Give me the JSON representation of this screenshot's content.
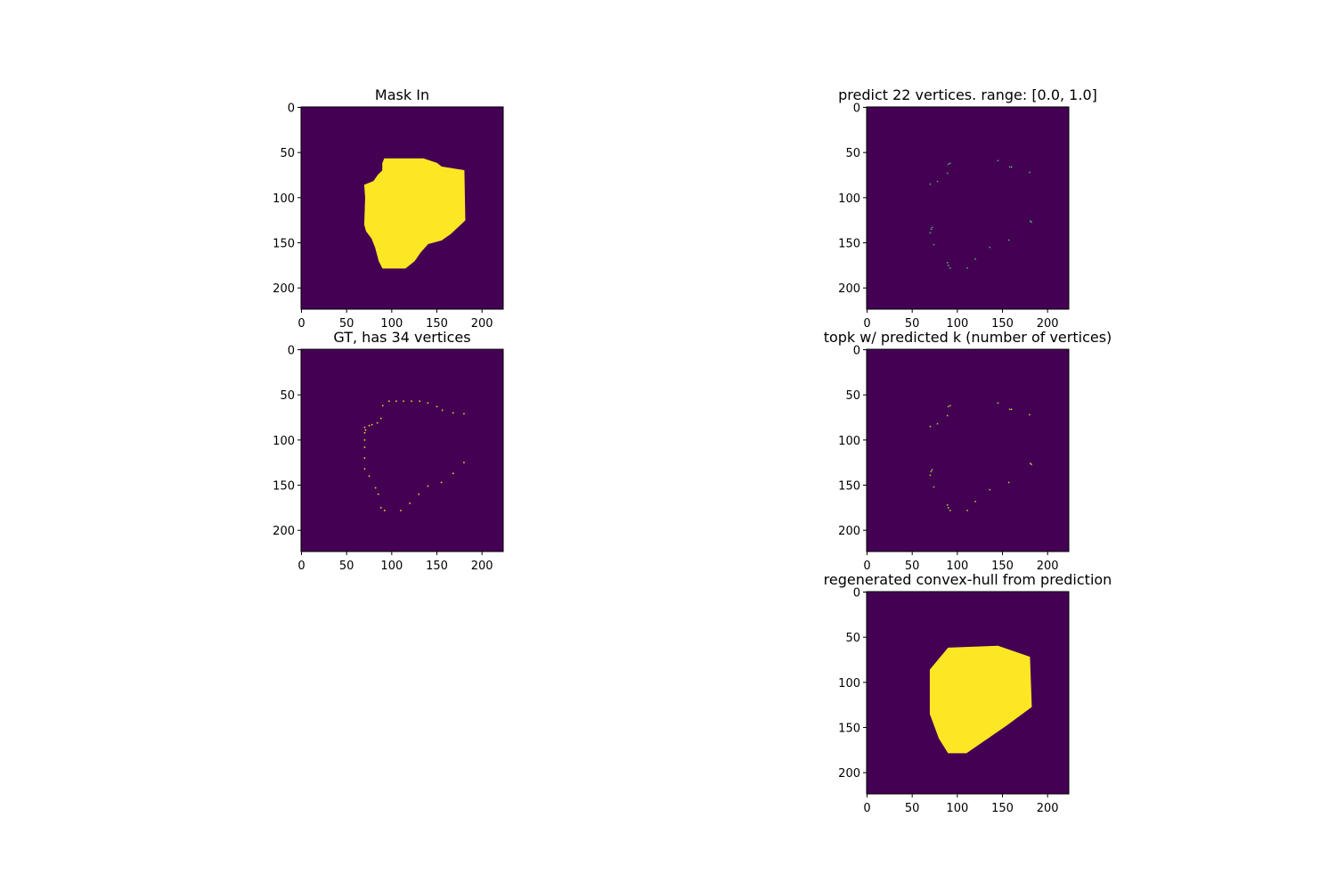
{
  "chart_data": [
    {
      "type": "image",
      "title": "Mask In",
      "xlim": [
        -0.5,
        223.5
      ],
      "ylim": [
        223.5,
        -0.5
      ],
      "xticks": [
        0,
        50,
        100,
        150,
        200
      ],
      "yticks": [
        0,
        50,
        100,
        150,
        200
      ],
      "background": "#440154",
      "polygon": {
        "color": "#fde725",
        "x": [
          90,
          92,
          135,
          150,
          155,
          180,
          181,
          165,
          155,
          140,
          132,
          125,
          115,
          90,
          86,
          82,
          78,
          72,
          70,
          71,
          70,
          80,
          85,
          90
        ],
        "y": [
          62,
          57,
          57,
          62,
          66,
          70,
          125,
          140,
          147,
          151,
          160,
          170,
          178,
          178,
          170,
          155,
          145,
          137,
          130,
          100,
          86,
          82,
          75,
          70
        ]
      }
    },
    {
      "type": "image",
      "title": "predict 22 vertices. range: [0.0, 1.0]",
      "xlim": [
        -0.5,
        223.5
      ],
      "ylim": [
        223.5,
        -0.5
      ],
      "xticks": [
        0,
        50,
        100,
        150,
        200
      ],
      "yticks": [
        0,
        50,
        100,
        150,
        200
      ],
      "background": "#440154",
      "points": {
        "color": "#4ac16d",
        "x": [
          92,
          90,
          89,
          78,
          70,
          145,
          158,
          160,
          180,
          182,
          181,
          157,
          136,
          120,
          111,
          92,
          90,
          89,
          74,
          72,
          71,
          70
        ],
        "y": [
          62,
          63,
          73,
          82,
          85,
          59,
          66,
          66,
          72,
          127,
          126,
          147,
          155,
          168,
          178,
          178,
          175,
          172,
          152,
          133,
          135,
          139
        ]
      }
    },
    {
      "type": "image",
      "title": "GT, has 34 vertices",
      "xlim": [
        -0.5,
        223.5
      ],
      "ylim": [
        223.5,
        -0.5
      ],
      "xticks": [
        0,
        50,
        100,
        150,
        200
      ],
      "yticks": [
        0,
        50,
        100,
        150,
        200
      ],
      "background": "#440154",
      "points": {
        "color": "#fde725",
        "x": [
          70,
          78,
          88,
          90,
          97,
          105,
          113,
          122,
          131,
          140,
          150,
          156,
          168,
          180,
          180,
          168,
          155,
          140,
          130,
          120,
          110,
          92,
          88,
          85,
          82,
          75,
          70,
          70,
          70,
          70,
          70,
          71,
          75,
          84
        ],
        "y": [
          86,
          83,
          76,
          62,
          57,
          57,
          57,
          57,
          57,
          59,
          63,
          67,
          70,
          71,
          125,
          137,
          147,
          151,
          160,
          170,
          178,
          178,
          175,
          160,
          153,
          140,
          132,
          120,
          108,
          100,
          92,
          89,
          84,
          81
        ]
      }
    },
    {
      "type": "image",
      "title": "topk w/ predicted k (number of vertices)",
      "xlim": [
        -0.5,
        223.5
      ],
      "ylim": [
        223.5,
        -0.5
      ],
      "xticks": [
        0,
        50,
        100,
        150,
        200
      ],
      "yticks": [
        0,
        50,
        100,
        150,
        200
      ],
      "background": "#440154",
      "points": {
        "color": "#b5de2b",
        "x": [
          92,
          90,
          89,
          78,
          70,
          145,
          158,
          160,
          180,
          182,
          181,
          157,
          136,
          120,
          111,
          92,
          90,
          89,
          74,
          72,
          71,
          70
        ],
        "y": [
          62,
          63,
          73,
          82,
          85,
          59,
          66,
          66,
          72,
          127,
          126,
          147,
          155,
          168,
          178,
          178,
          175,
          172,
          152,
          133,
          135,
          139
        ]
      }
    },
    {
      "type": "image",
      "title": "regenerated convex-hull from prediction",
      "xlim": [
        -0.5,
        223.5
      ],
      "ylim": [
        223.5,
        -0.5
      ],
      "xticks": [
        0,
        50,
        100,
        150,
        200
      ],
      "yticks": [
        0,
        50,
        100,
        150,
        200
      ],
      "background": "#440154",
      "polygon": {
        "color": "#fde725",
        "x": [
          70,
          90,
          145,
          180,
          182,
          155,
          110,
          90,
          80,
          70
        ],
        "y": [
          86,
          62,
          60,
          72,
          127,
          147,
          178,
          178,
          162,
          135
        ]
      }
    }
  ]
}
